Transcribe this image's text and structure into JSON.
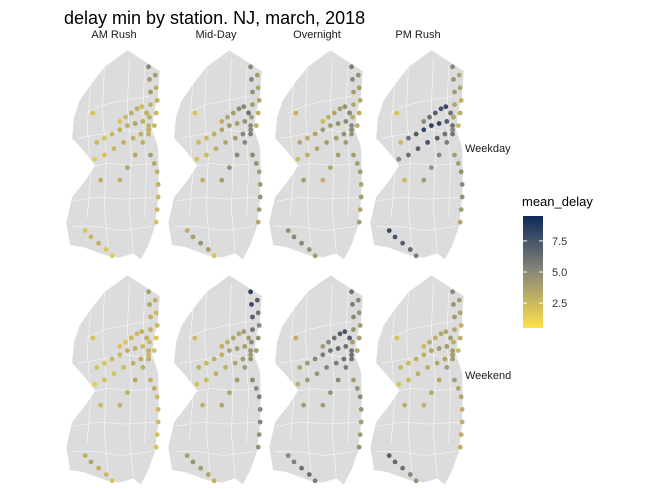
{
  "chart_data": {
    "type": "scatter",
    "title": "delay min by station. NJ, march, 2018",
    "columns": [
      "AM Rush",
      "Mid-Day",
      "Overnight",
      "PM Rush"
    ],
    "rows": [
      "Weekday",
      "Weekend"
    ],
    "legend": {
      "title": "mean_delay",
      "ticks": [
        2.5,
        5.0,
        7.5
      ],
      "tick_labels": [
        "2.5",
        "5.0",
        "7.5"
      ],
      "range": [
        0.5,
        9.5
      ],
      "colors": {
        "low": "#ffe04a",
        "mid": "#8a8878",
        "high": "#0e2a5a"
      },
      "placement": "right"
    },
    "lines": {
      "montclair": [
        [
          0.56,
          0.34
        ],
        [
          0.62,
          0.32
        ],
        [
          0.68,
          0.3
        ],
        [
          0.74,
          0.28
        ],
        [
          0.79,
          0.27
        ],
        [
          0.84,
          0.3
        ]
      ],
      "morristown": [
        [
          0.4,
          0.42
        ],
        [
          0.48,
          0.4
        ],
        [
          0.56,
          0.38
        ],
        [
          0.64,
          0.36
        ],
        [
          0.72,
          0.35
        ],
        [
          0.8,
          0.34
        ],
        [
          0.86,
          0.36
        ]
      ],
      "raritan": [
        [
          0.3,
          0.52
        ],
        [
          0.4,
          0.5
        ],
        [
          0.5,
          0.47
        ],
        [
          0.6,
          0.44
        ],
        [
          0.7,
          0.42
        ],
        [
          0.78,
          0.4
        ],
        [
          0.86,
          0.38
        ]
      ],
      "nec": [
        [
          0.56,
          0.62
        ],
        [
          0.64,
          0.56
        ],
        [
          0.72,
          0.5
        ],
        [
          0.8,
          0.44
        ],
        [
          0.86,
          0.4
        ]
      ],
      "pascack": [
        [
          0.86,
          0.08
        ],
        [
          0.87,
          0.14
        ],
        [
          0.88,
          0.2
        ],
        [
          0.88,
          0.26
        ],
        [
          0.87,
          0.32
        ]
      ],
      "bergen": [
        [
          0.93,
          0.12
        ],
        [
          0.94,
          0.18
        ],
        [
          0.95,
          0.24
        ],
        [
          0.94,
          0.3
        ],
        [
          0.92,
          0.36
        ]
      ],
      "coast": [
        [
          0.88,
          0.5
        ],
        [
          0.92,
          0.54
        ],
        [
          0.95,
          0.58
        ],
        [
          0.96,
          0.64
        ],
        [
          0.96,
          0.7
        ],
        [
          0.95,
          0.76
        ],
        [
          0.94,
          0.82
        ]
      ],
      "atlantic": [
        [
          0.2,
          0.86
        ],
        [
          0.26,
          0.89
        ],
        [
          0.34,
          0.92
        ],
        [
          0.42,
          0.95
        ],
        [
          0.48,
          0.98
        ]
      ],
      "west": [
        [
          0.28,
          0.3
        ],
        [
          0.32,
          0.44
        ],
        [
          0.36,
          0.62
        ]
      ]
    },
    "panels": [
      {
        "column": "AM Rush",
        "row": "Weekday",
        "delays": {
          "montclair": [
            2,
            2.5,
            3,
            3,
            2.5,
            3
          ],
          "morristown": [
            2,
            2.5,
            3,
            3,
            3.5,
            3,
            3
          ],
          "raritan": [
            1.5,
            2,
            2.5,
            3,
            3,
            3,
            3
          ],
          "nec": [
            3,
            3.5,
            3.5,
            3,
            3
          ],
          "pascack": [
            5,
            4,
            4,
            3,
            3
          ],
          "bergen": [
            4,
            3,
            3,
            2.5,
            2.5
          ],
          "coast": [
            4,
            3.5,
            3,
            3,
            2.5,
            2.5,
            2
          ],
          "atlantic": [
            2,
            2.5,
            3,
            2,
            1.5
          ],
          "west": [
            2,
            2.5,
            3
          ]
        }
      },
      {
        "column": "Mid-Day",
        "row": "Weekday",
        "delays": {
          "montclair": [
            3,
            3.5,
            4,
            5,
            5,
            6
          ],
          "morristown": [
            2.5,
            3,
            3.5,
            4,
            4,
            4.5,
            5
          ],
          "raritan": [
            2,
            2.5,
            3,
            3.5,
            4,
            5,
            5
          ],
          "nec": [
            4,
            4.5,
            5,
            5,
            5.5
          ],
          "pascack": [
            5,
            5,
            4.5,
            4,
            4
          ],
          "bergen": [
            4,
            3.5,
            3.5,
            3,
            3
          ],
          "coast": [
            5,
            4.5,
            4,
            4,
            4.5,
            4,
            3.5
          ],
          "atlantic": [
            3,
            4,
            4.5,
            4,
            2
          ],
          "west": [
            2,
            2.5,
            3
          ]
        }
      },
      {
        "column": "Overnight",
        "row": "Weekday",
        "delays": {
          "montclair": [
            2.5,
            3,
            3.5,
            4,
            4.5,
            5
          ],
          "morristown": [
            3,
            3.5,
            4,
            4,
            4.5,
            5,
            5
          ],
          "raritan": [
            2.5,
            3,
            3.5,
            4,
            4,
            4.5,
            5
          ],
          "nec": [
            3,
            3.5,
            4,
            4,
            4.5
          ],
          "pascack": [
            5.5,
            5,
            4,
            3.5,
            3
          ],
          "bergen": [
            4.5,
            4,
            3.5,
            3,
            3
          ],
          "coast": [
            4,
            4,
            4,
            3.5,
            4,
            3.5,
            4
          ],
          "atlantic": [
            4.5,
            5,
            5,
            4.5,
            4
          ],
          "west": [
            3,
            3.5,
            4
          ]
        }
      },
      {
        "column": "PM Rush",
        "row": "Weekday",
        "delays": {
          "montclair": [
            5,
            6,
            7,
            7.5,
            8,
            6
          ],
          "morristown": [
            6,
            7,
            8,
            8.5,
            8,
            7,
            6
          ],
          "raritan": [
            5,
            6,
            7,
            7.5,
            7,
            6,
            5
          ],
          "nec": [
            4,
            4.5,
            5,
            5.5,
            6
          ],
          "pascack": [
            5,
            4.5,
            4,
            3.5,
            3.5
          ],
          "bergen": [
            3.5,
            3.5,
            3,
            3,
            2.5
          ],
          "coast": [
            4,
            4,
            4.5,
            5,
            4.5,
            4,
            3.5
          ],
          "atlantic": [
            8,
            7.5,
            7,
            6.5,
            5.5
          ],
          "west": [
            2,
            2.5,
            2.5
          ]
        }
      },
      {
        "column": "AM Rush",
        "row": "Weekend",
        "delays": {
          "montclair": [
            2,
            2,
            2.5,
            2.5,
            3,
            3
          ],
          "morristown": [
            2,
            2.5,
            2.5,
            3,
            3,
            2.5,
            3
          ],
          "raritan": [
            1.5,
            2,
            2,
            2.5,
            3,
            3,
            2.5
          ],
          "nec": [
            3,
            3,
            3.5,
            3,
            3
          ],
          "pascack": [
            4,
            3.5,
            3,
            3,
            2.5
          ],
          "bergen": [
            3,
            2.5,
            2.5,
            2,
            2
          ],
          "coast": [
            3,
            3,
            2.5,
            2.5,
            2.5,
            2,
            2
          ],
          "atlantic": [
            3,
            3.5,
            3,
            2.5,
            2
          ],
          "west": [
            2,
            2,
            2.5
          ]
        }
      },
      {
        "column": "Mid-Day",
        "row": "Weekend",
        "delays": {
          "montclair": [
            3,
            3,
            3.5,
            3.5,
            4,
            4
          ],
          "morristown": [
            2.5,
            3,
            3,
            3.5,
            4,
            4,
            4.5
          ],
          "raritan": [
            2,
            2.5,
            3,
            3,
            3.5,
            4,
            4
          ],
          "nec": [
            3.5,
            3.5,
            4,
            4,
            4.5
          ],
          "pascack": [
            8.5,
            8,
            7,
            6,
            5
          ],
          "bergen": [
            7,
            6,
            5,
            4.5,
            4
          ],
          "coast": [
            5,
            5,
            5.5,
            5,
            5,
            4.5,
            4.5
          ],
          "atlantic": [
            4,
            4.5,
            4,
            3.5,
            3
          ],
          "west": [
            2.5,
            3,
            3
          ]
        }
      },
      {
        "column": "Overnight",
        "row": "Weekend",
        "delays": {
          "montclair": [
            4,
            5,
            6,
            7,
            7.5,
            7
          ],
          "morristown": [
            4,
            5,
            5.5,
            6,
            6.5,
            6,
            6
          ],
          "raritan": [
            3,
            4,
            4.5,
            5,
            5.5,
            6,
            6
          ],
          "nec": [
            4,
            4.5,
            5,
            5.5,
            6
          ],
          "pascack": [
            6,
            5.5,
            5,
            4.5,
            4
          ],
          "bergen": [
            5,
            4.5,
            4,
            4,
            3.5
          ],
          "coast": [
            4,
            4.5,
            5,
            4.5,
            4,
            4,
            4.5
          ],
          "atlantic": [
            5,
            5.5,
            6,
            6,
            5.5
          ],
          "west": [
            3,
            3.5,
            4
          ]
        }
      },
      {
        "column": "PM Rush",
        "row": "Weekend",
        "delays": {
          "montclair": [
            2.5,
            3,
            3,
            3.5,
            3.5,
            4
          ],
          "morristown": [
            2.5,
            3,
            3,
            3.5,
            4,
            4,
            4
          ],
          "raritan": [
            2,
            2.5,
            3,
            3,
            3.5,
            3.5,
            4
          ],
          "nec": [
            3,
            3.5,
            3.5,
            4,
            4
          ],
          "pascack": [
            5,
            4.5,
            4,
            3.5,
            3
          ],
          "bergen": [
            4,
            3.5,
            3,
            3,
            2.5
          ],
          "coast": [
            4,
            3.5,
            3.5,
            3,
            3,
            3,
            3
          ],
          "atlantic": [
            7,
            6.5,
            6,
            5,
            4.5
          ],
          "west": [
            2,
            2.5,
            3
          ]
        }
      }
    ]
  }
}
